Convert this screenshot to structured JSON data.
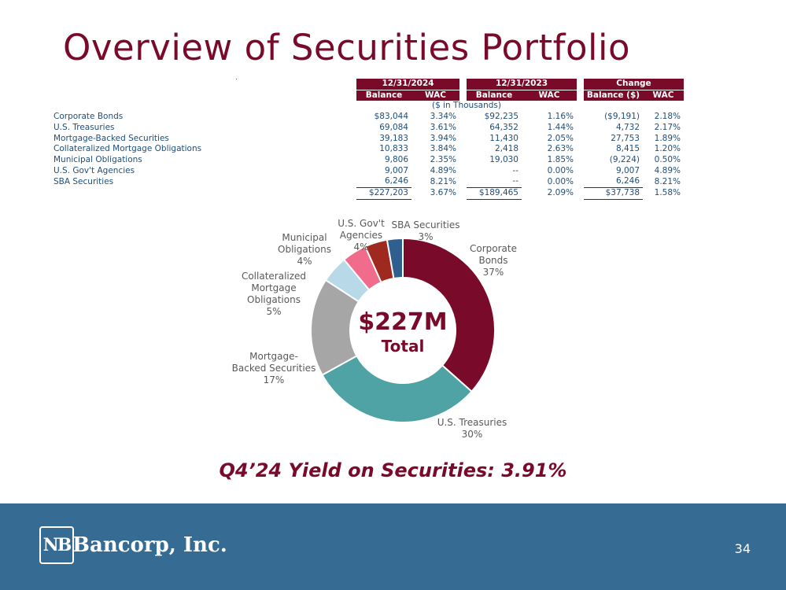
{
  "title": "Overview of Securities Portfolio",
  "table": {
    "groups": [
      "12/31/2024",
      "12/31/2023",
      "Change"
    ],
    "subheaders": [
      "Balance",
      "WAC",
      "Balance",
      "WAC",
      "Balance ($)",
      "WAC"
    ],
    "units": "($ in Thousands)",
    "rows": [
      {
        "label": "Corporate Bonds",
        "v": [
          "$83,044",
          "3.34%",
          "$92,235",
          "1.16%",
          "($9,191)",
          "2.18%"
        ]
      },
      {
        "label": "U.S. Treasuries",
        "v": [
          "69,084",
          "3.61%",
          "64,352",
          "1.44%",
          "4,732",
          "2.17%"
        ]
      },
      {
        "label": "Mortgage-Backed Securities",
        "v": [
          "39,183",
          "3.94%",
          "11,430",
          "2.05%",
          "27,753",
          "1.89%"
        ]
      },
      {
        "label": "Collateralized Mortgage Obligations",
        "v": [
          "10,833",
          "3.84%",
          "2,418",
          "2.63%",
          "8,415",
          "1.20%"
        ]
      },
      {
        "label": "Municipal Obligations",
        "v": [
          "9,806",
          "2.35%",
          "19,030",
          "1.85%",
          "(9,224)",
          "0.50%"
        ]
      },
      {
        "label": "U.S. Gov't Agencies",
        "v": [
          "9,007",
          "4.89%",
          "--",
          "0.00%",
          "9,007",
          "4.89%"
        ]
      },
      {
        "label": "SBA Securities",
        "v": [
          "6,246",
          "8.21%",
          "--",
          "0.00%",
          "6,246",
          "8.21%"
        ]
      }
    ],
    "total": [
      "$227,203",
      "3.67%",
      "$189,465",
      "2.09%",
      "$37,738",
      "1.58%"
    ]
  },
  "chart_data": {
    "type": "pie",
    "donut": true,
    "center_label": "$227M",
    "center_sublabel": "Total",
    "slices": [
      {
        "name": "Corporate Bonds",
        "lines": [
          "Corporate",
          "Bonds"
        ],
        "pct_label": "37%",
        "value": 83044,
        "color": "#7a0a2a"
      },
      {
        "name": "U.S. Treasuries",
        "lines": [
          "U.S. Treasuries"
        ],
        "pct_label": "30%",
        "value": 69084,
        "color": "#4fa3a5"
      },
      {
        "name": "Mortgage-Backed Securities",
        "lines": [
          "Mortgage-",
          "Backed Securities"
        ],
        "pct_label": "17%",
        "value": 39183,
        "color": "#a6a6a6"
      },
      {
        "name": "Collateralized Mortgage Obligations",
        "lines": [
          "Collateralized",
          "Mortgage",
          "Obligations"
        ],
        "pct_label": "5%",
        "value": 10833,
        "color": "#b7d9e8"
      },
      {
        "name": "Municipal Obligations",
        "lines": [
          "Municipal",
          "Obligations"
        ],
        "pct_label": "4%",
        "value": 9806,
        "color": "#f06b8c"
      },
      {
        "name": "U.S. Gov't Agencies",
        "lines": [
          "U.S. Gov't",
          "Agencies"
        ],
        "pct_label": "4%",
        "value": 9007,
        "color": "#a0291f"
      },
      {
        "name": "SBA Securities",
        "lines": [
          "SBA Securities"
        ],
        "pct_label": "3%",
        "value": 6246,
        "color": "#2f5f8f"
      }
    ]
  },
  "yield_text": "Q4’24 Yield on Securities: 3.91%",
  "footer": {
    "logo_mark": "NB",
    "logo_text": "Bancorp, Inc.",
    "page_number": "34"
  }
}
